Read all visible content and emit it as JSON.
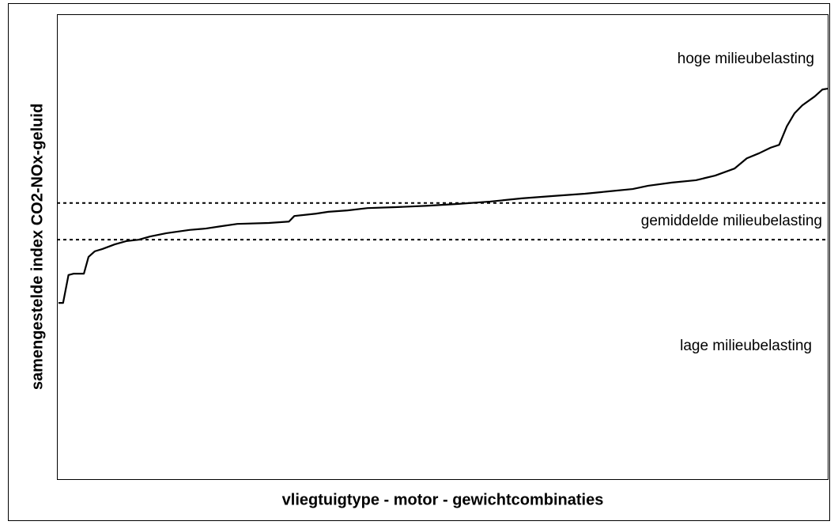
{
  "chart_data": {
    "type": "line",
    "ylabel": "samengestelde index CO2-NOx-geluid",
    "xlabel": "vliegtuigtype - motor - gewichtcombinaties",
    "xlim": [
      0,
      100
    ],
    "ylim": [
      0,
      100
    ],
    "x": [
      0.2,
      0.8,
      1.5,
      2.2,
      3.5,
      4.1,
      4.9,
      5.9,
      7.5,
      9.0,
      10.6,
      12.1,
      14.2,
      17.2,
      19.3,
      21.3,
      23.4,
      27.5,
      30.1,
      30.8,
      33.6,
      35.2,
      37.7,
      40.3,
      43.9,
      48.0,
      52.1,
      56.2,
      60.3,
      64.4,
      68.5,
      71.6,
      74.7,
      76.7,
      79.8,
      82.9,
      85.4,
      87.9,
      89.5,
      91.1,
      92.6,
      93.7,
      94.7,
      95.7,
      96.7,
      98.3,
      99.3,
      100
    ],
    "series": [
      {
        "color": "#000000",
        "values": [
          37.9,
          37.9,
          43.9,
          44.2,
          44.2,
          47.8,
          49.0,
          49.5,
          50.5,
          51.2,
          51.5,
          52.2,
          52.9,
          53.6,
          53.9,
          54.4,
          54.9,
          55.1,
          55.4,
          56.6,
          57.1,
          57.5,
          57.8,
          58.3,
          58.5,
          58.8,
          59.2,
          59.7,
          60.4,
          60.9,
          61.4,
          61.9,
          62.4,
          63.1,
          63.8,
          64.3,
          65.3,
          66.8,
          69.0,
          70.1,
          71.3,
          71.9,
          75.9,
          78.7,
          80.4,
          82.3,
          83.8,
          84.0
        ]
      }
    ],
    "reference_lines": [
      59.4,
      51.5
    ],
    "annotations": [
      "hoge milieubelasting",
      "gemiddelde milieubelasting",
      "lage milieubelasting"
    ]
  }
}
